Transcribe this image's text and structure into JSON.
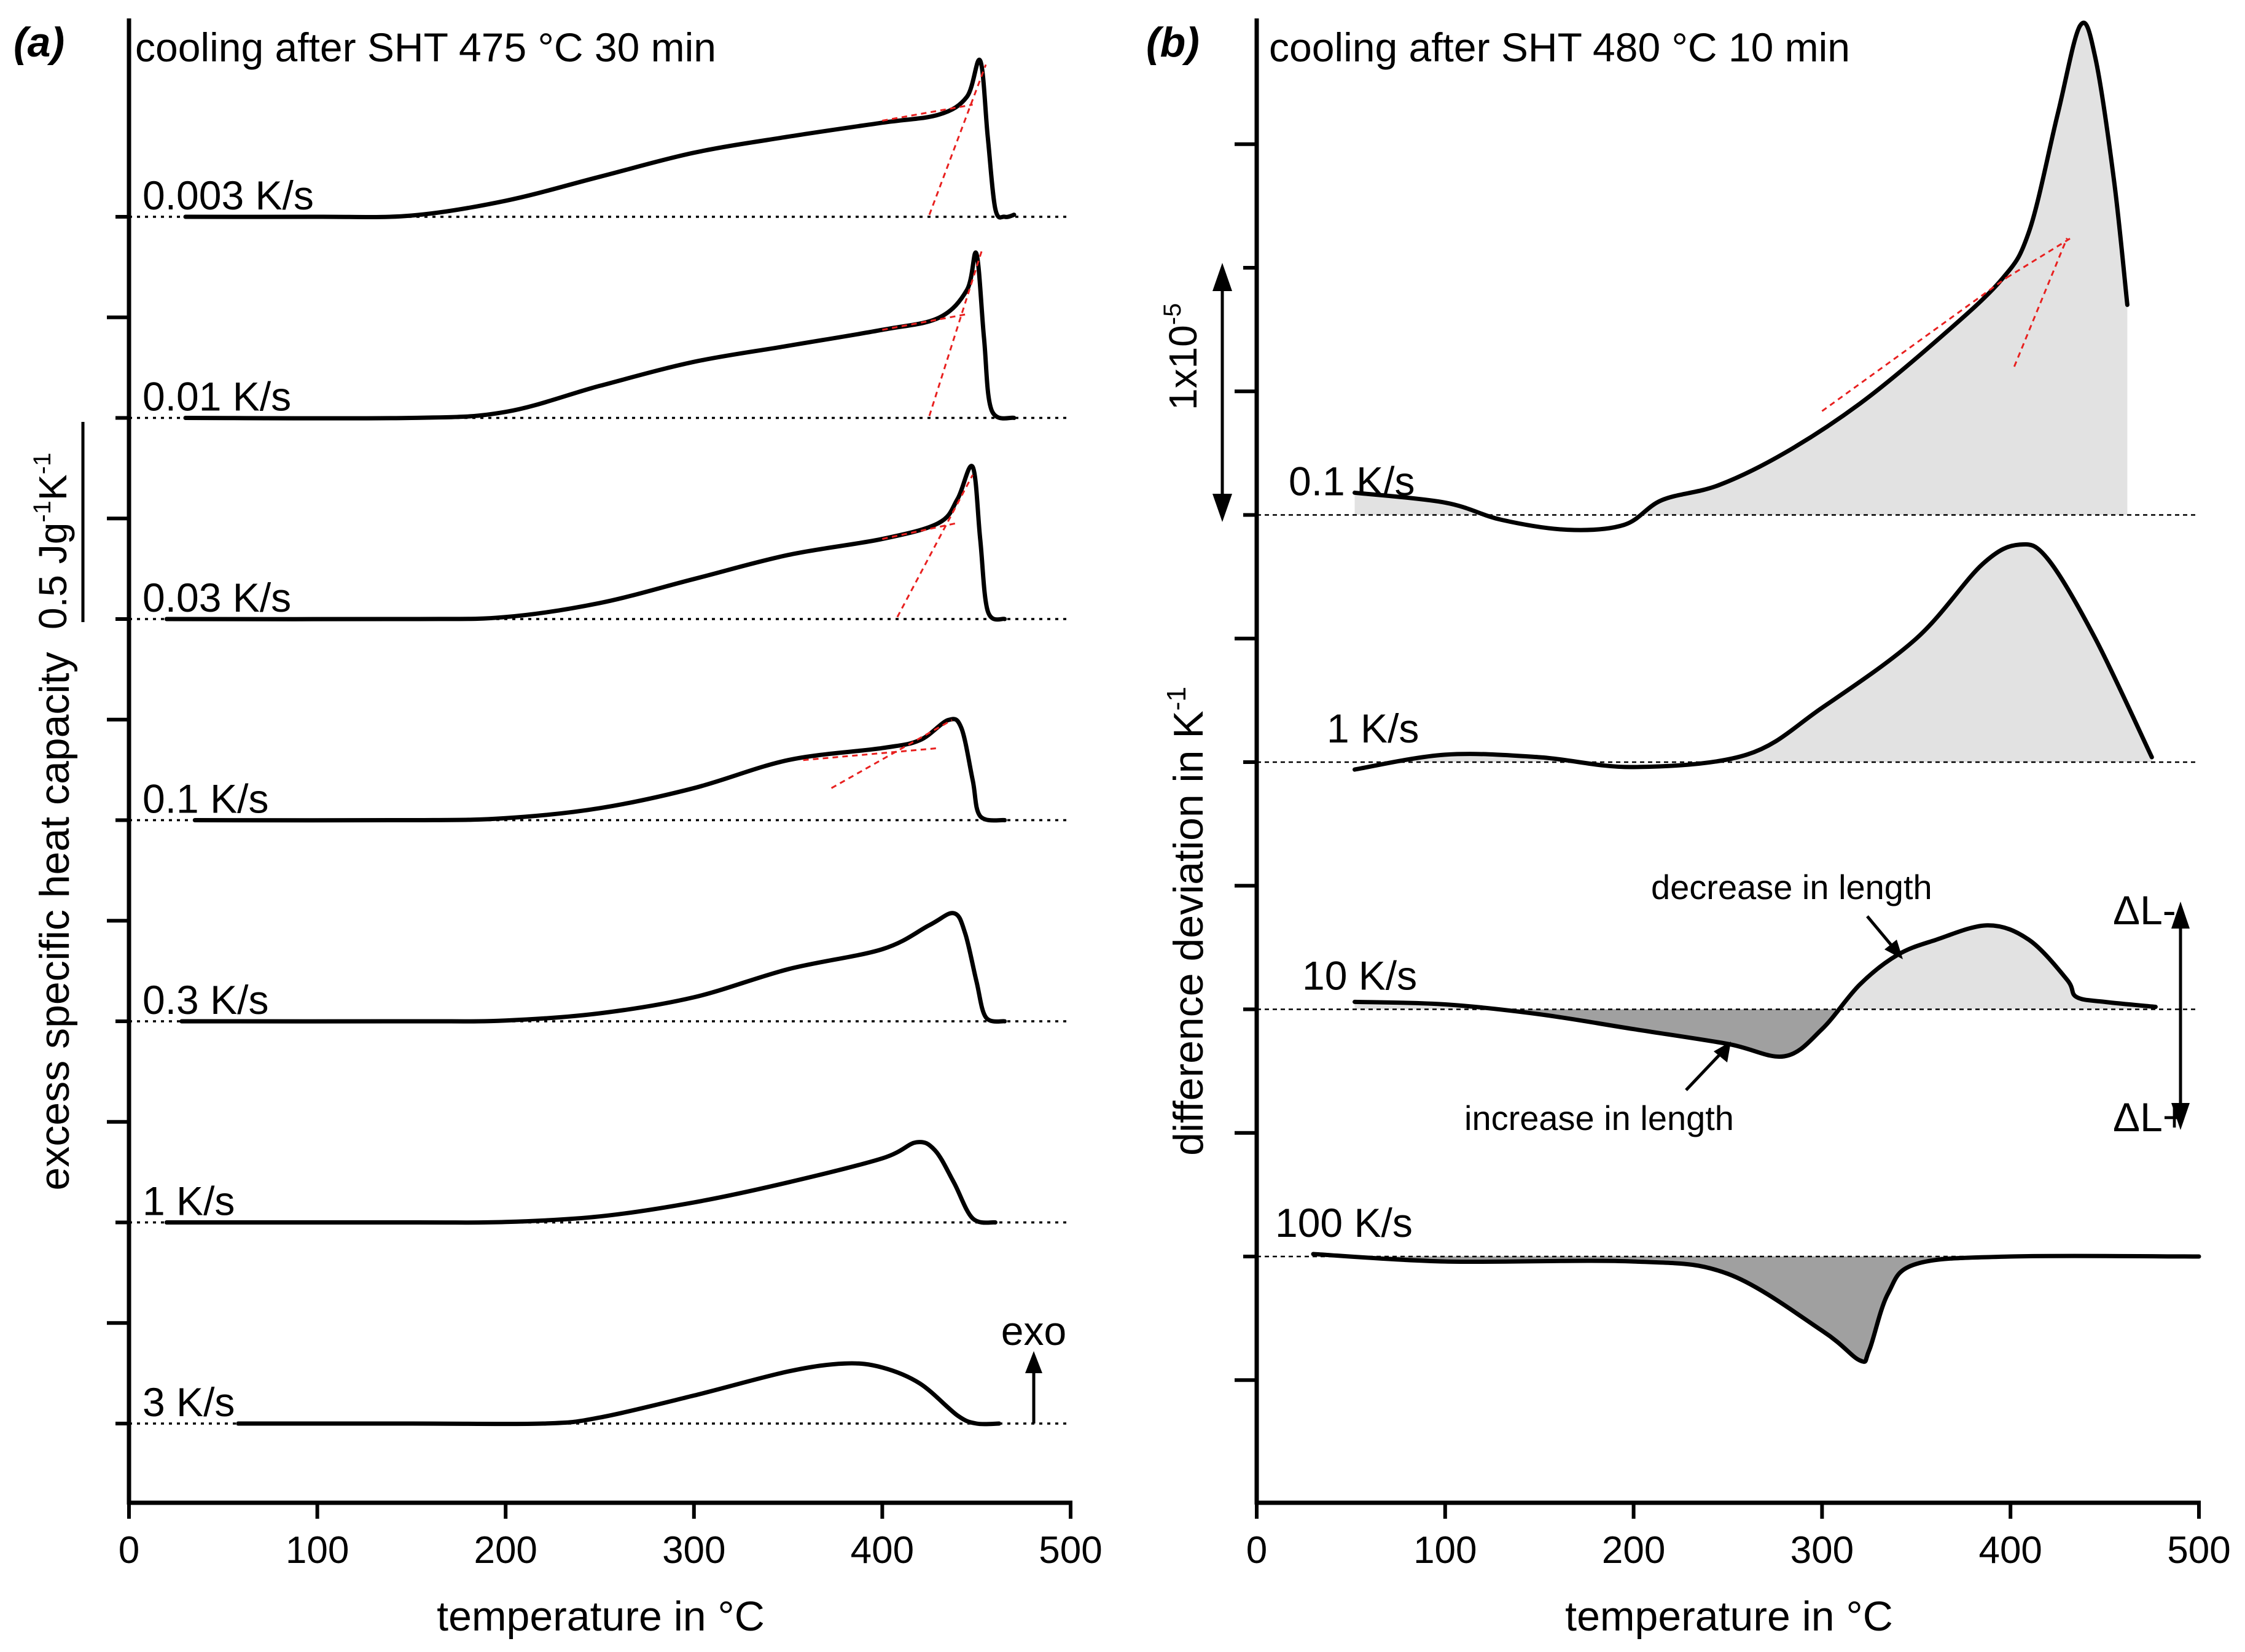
{
  "chart_data": [
    {
      "panel": "(a)",
      "type": "line",
      "title": "cooling after SHT 475 °C 30 min",
      "xlabel": "temperature in °C",
      "ylabel": "excess specific heat capacity",
      "xlim": [
        0,
        500
      ],
      "xticks": [
        0,
        100,
        200,
        300,
        400,
        500
      ],
      "scale_bar": {
        "label": "0.5 Jg",
        "sup1": "-1",
        "mid": "K",
        "sup2": "-1",
        "value": 0.5
      },
      "exo_label": "exo",
      "y_unit_per_offset": 0.5,
      "series": [
        {
          "name": "0.003 K/s",
          "offset": 6,
          "points": [
            [
              30,
              0
            ],
            [
              100,
              0
            ],
            [
              150,
              0.003
            ],
            [
              200,
              0.04
            ],
            [
              250,
              0.1
            ],
            [
              300,
              0.16
            ],
            [
              350,
              0.2
            ],
            [
              400,
              0.235
            ],
            [
              430,
              0.255
            ],
            [
              445,
              0.3
            ],
            [
              452,
              0.39
            ],
            [
              456,
              0.2
            ],
            [
              460,
              0.02
            ],
            [
              465,
              0
            ],
            [
              470,
              0.005
            ]
          ],
          "tangents": [
            [
              [
                425,
                0.005
              ],
              [
                455,
                0.38
              ]
            ],
            [
              [
                400,
                0.24
              ],
              [
                448,
                0.28
              ]
            ]
          ]
        },
        {
          "name": "0.01 K/s",
          "offset": 5,
          "points": [
            [
              30,
              0
            ],
            [
              150,
              0
            ],
            [
              200,
              0.015
            ],
            [
              250,
              0.08
            ],
            [
              300,
              0.14
            ],
            [
              350,
              0.18
            ],
            [
              400,
              0.22
            ],
            [
              430,
              0.25
            ],
            [
              445,
              0.32
            ],
            [
              450,
              0.41
            ],
            [
              454,
              0.2
            ],
            [
              458,
              0.02
            ],
            [
              470,
              0
            ]
          ],
          "tangents": [
            [
              [
                425,
                0.005
              ],
              [
                453,
                0.42
              ]
            ],
            [
              [
                400,
                0.22
              ],
              [
                446,
                0.26
              ]
            ]
          ]
        },
        {
          "name": "0.03 K/s",
          "offset": 4,
          "points": [
            [
              20,
              0
            ],
            [
              150,
              0
            ],
            [
              200,
              0.005
            ],
            [
              250,
              0.04
            ],
            [
              300,
              0.1
            ],
            [
              350,
              0.16
            ],
            [
              400,
              0.2
            ],
            [
              430,
              0.24
            ],
            [
              440,
              0.3
            ],
            [
              448,
              0.38
            ],
            [
              452,
              0.2
            ],
            [
              456,
              0.02
            ],
            [
              465,
              0
            ]
          ],
          "tangents": [
            [
              [
                408,
                0.005
              ],
              [
                448,
                0.36
              ]
            ],
            [
              [
                400,
                0.2
              ],
              [
                440,
                0.24
              ]
            ]
          ]
        },
        {
          "name": "0.1 K/s",
          "offset": 3,
          "points": [
            [
              35,
              0
            ],
            [
              150,
              0
            ],
            [
              200,
              0.005
            ],
            [
              250,
              0.03
            ],
            [
              300,
              0.08
            ],
            [
              350,
              0.15
            ],
            [
              400,
              0.18
            ],
            [
              420,
              0.2
            ],
            [
              435,
              0.25
            ],
            [
              442,
              0.23
            ],
            [
              448,
              0.1
            ],
            [
              452,
              0.01
            ],
            [
              465,
              0
            ]
          ],
          "tangents": [
            [
              [
                373,
                0.08
              ],
              [
                437,
                0.25
              ]
            ],
            [
              [
                358,
                0.15
              ],
              [
                430,
                0.18
              ]
            ]
          ]
        },
        {
          "name": "0.3 K/s",
          "offset": 2,
          "points": [
            [
              28,
              0
            ],
            [
              150,
              0
            ],
            [
              200,
              0.002
            ],
            [
              250,
              0.02
            ],
            [
              300,
              0.06
            ],
            [
              350,
              0.13
            ],
            [
              400,
              0.18
            ],
            [
              425,
              0.24
            ],
            [
              438,
              0.27
            ],
            [
              444,
              0.22
            ],
            [
              450,
              0.1
            ],
            [
              455,
              0.01
            ],
            [
              465,
              0
            ]
          ]
        },
        {
          "name": "1 K/s",
          "offset": 1,
          "points": [
            [
              20,
              0
            ],
            [
              150,
              0
            ],
            [
              200,
              0.001
            ],
            [
              250,
              0.015
            ],
            [
              300,
              0.05
            ],
            [
              350,
              0.1
            ],
            [
              400,
              0.16
            ],
            [
              418,
              0.2
            ],
            [
              428,
              0.18
            ],
            [
              438,
              0.1
            ],
            [
              448,
              0.01
            ],
            [
              460,
              0
            ]
          ]
        },
        {
          "name": "3 K/s",
          "offset": 0,
          "points": [
            [
              58,
              0
            ],
            [
              150,
              0
            ],
            [
              220,
              0
            ],
            [
              250,
              0.015
            ],
            [
              300,
              0.07
            ],
            [
              350,
              0.13
            ],
            [
              380,
              0.15
            ],
            [
              400,
              0.14
            ],
            [
              420,
              0.1
            ],
            [
              440,
              0.02
            ],
            [
              450,
              0
            ],
            [
              462,
              0
            ]
          ]
        }
      ]
    },
    {
      "panel": "(b)",
      "type": "area",
      "title": "cooling after SHT 480 °C 10 min",
      "xlabel": "temperature in °C",
      "ylabel": "difference deviation in K",
      "ylabel_sup": "-1",
      "xlim": [
        0,
        500
      ],
      "xticks": [
        0,
        100,
        200,
        300,
        400,
        500
      ],
      "scale_bar": {
        "label": "1x10",
        "sup": "-5",
        "value": 1e-05
      },
      "y_unit_per_offset": 1e-05,
      "series": [
        {
          "name": "0.1 K/s",
          "offset": 3,
          "points": [
            [
              52,
              0.09
            ],
            [
              100,
              0.05
            ],
            [
              130,
              -0.02
            ],
            [
              165,
              -0.06
            ],
            [
              195,
              -0.04
            ],
            [
              215,
              0.06
            ],
            [
              245,
              0.12
            ],
            [
              280,
              0.25
            ],
            [
              320,
              0.45
            ],
            [
              360,
              0.7
            ],
            [
              395,
              0.95
            ],
            [
              410,
              1.15
            ],
            [
              425,
              1.62
            ],
            [
              437,
              1.98
            ],
            [
              445,
              1.85
            ],
            [
              455,
              1.35
            ],
            [
              462,
              0.85
            ]
          ],
          "tangents": [
            [
              [
                300,
                0.42
              ],
              [
                398,
                0.96
              ]
            ],
            [
              [
                402,
                0.6
              ],
              [
                430,
                1.12
              ]
            ],
            [
              [
                398,
                0.96
              ],
              [
                432,
                1.12
              ]
            ]
          ]
        },
        {
          "name": "1 K/s",
          "offset": 2,
          "points": [
            [
              52,
              -0.03
            ],
            [
              100,
              0.03
            ],
            [
              150,
              0.02
            ],
            [
              200,
              -0.02
            ],
            [
              260,
              0.03
            ],
            [
              300,
              0.22
            ],
            [
              350,
              0.5
            ],
            [
              385,
              0.8
            ],
            [
              405,
              0.88
            ],
            [
              420,
              0.82
            ],
            [
              445,
              0.5
            ],
            [
              475,
              0.02
            ]
          ]
        },
        {
          "name": "10 K/s",
          "offset": 1,
          "points": [
            [
              52,
              0.03
            ],
            [
              100,
              0.02
            ],
            [
              150,
              -0.02
            ],
            [
              200,
              -0.08
            ],
            [
              250,
              -0.14
            ],
            [
              280,
              -0.19
            ],
            [
              300,
              -0.08
            ],
            [
              320,
              0.1
            ],
            [
              340,
              0.22
            ],
            [
              360,
              0.28
            ],
            [
              388,
              0.34
            ],
            [
              410,
              0.28
            ],
            [
              430,
              0.12
            ],
            [
              435,
              0.05
            ],
            [
              450,
              0.03
            ],
            [
              477,
              0.01
            ]
          ]
        },
        {
          "name": "100 K/s",
          "offset": 0,
          "points": [
            [
              30,
              0.01
            ],
            [
              100,
              -0.02
            ],
            [
              200,
              -0.02
            ],
            [
              250,
              -0.07
            ],
            [
              300,
              -0.3
            ],
            [
              320,
              -0.42
            ],
            [
              325,
              -0.38
            ],
            [
              335,
              -0.15
            ],
            [
              350,
              -0.03
            ],
            [
              400,
              0
            ],
            [
              500,
              0
            ]
          ]
        }
      ],
      "annotations": [
        "decrease in length",
        "increase in length"
      ],
      "delta_labels": {
        "top": "ΔL-",
        "bottom": "ΔL+"
      }
    }
  ]
}
